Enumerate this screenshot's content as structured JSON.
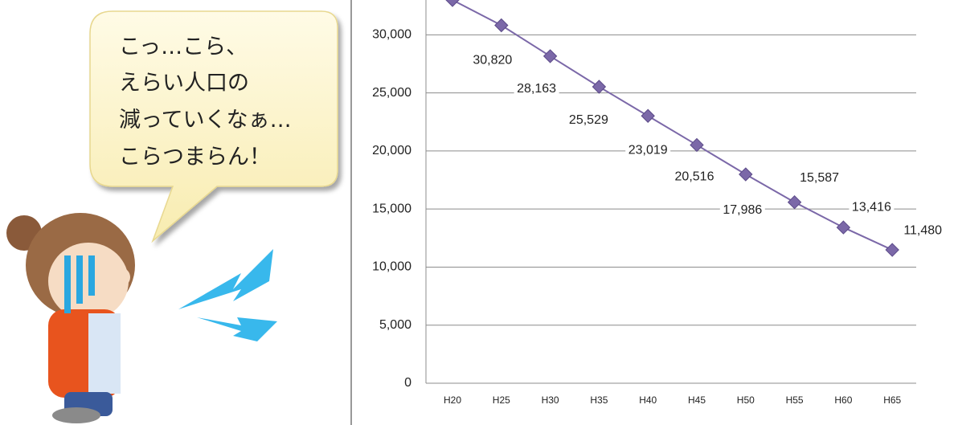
{
  "speech_bubble": {
    "lines": [
      "こっ…こら、",
      "えらい人口の",
      "減っていくなぁ…",
      "こらつまらん！"
    ]
  },
  "chart_data": {
    "type": "line",
    "categories": [
      "H20",
      "H25",
      "H30",
      "H35",
      "H40",
      "H45",
      "H50",
      "H55",
      "H60",
      "H65"
    ],
    "series": [
      {
        "color": "#7b68a8",
        "values": [
          33000,
          30820,
          28163,
          25529,
          23019,
          20516,
          17986,
          15587,
          13416,
          11480
        ],
        "value_labels": [
          null,
          "30,820",
          "28,163",
          "25,529",
          "23,019",
          "20,516",
          "17,986",
          "15,587",
          "13,416",
          "11,480"
        ]
      }
    ],
    "ylim": [
      0,
      33000
    ],
    "yticks": [
      0,
      {
        "value": 5000,
        "label": "5,000"
      },
      {
        "value": 10000,
        "label": "10,000"
      },
      {
        "value": 15000,
        "label": "15,000"
      },
      {
        "value": 20000,
        "label": "20,000"
      },
      {
        "value": 25000,
        "label": "25,000"
      },
      {
        "value": 30000,
        "label": "30,000"
      }
    ],
    "grid": true
  }
}
